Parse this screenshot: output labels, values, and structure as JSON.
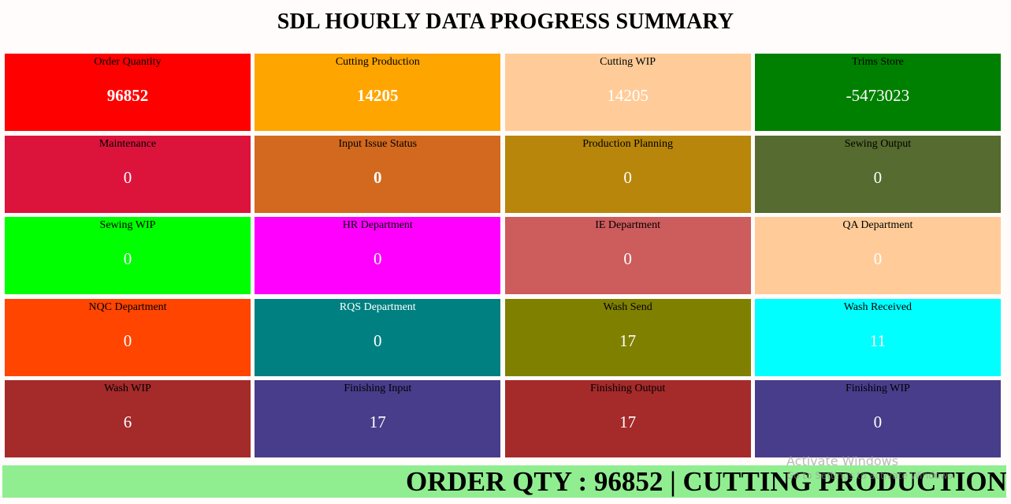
{
  "header": {
    "title": "SDL HOURLY DATA PROGRESS SUMMARY"
  },
  "cards": [
    {
      "label": "Order Quantity",
      "value": "96852",
      "bg": "#ff0000",
      "label_color": "#000000",
      "value_color": "#ffffff",
      "bold": true
    },
    {
      "label": "Cutting Production",
      "value": "14205",
      "bg": "#ffa500",
      "label_color": "#000000",
      "value_color": "#ffffff",
      "bold": true
    },
    {
      "label": "Cutting WIP",
      "value": "14205",
      "bg": "#ffcc99",
      "label_color": "#000000",
      "value_color": "#ffffff",
      "bold": false
    },
    {
      "label": "Trims Store",
      "value": "-5473023",
      "bg": "#008000",
      "label_color": "#000000",
      "value_color": "#ffffff",
      "bold": false
    },
    {
      "label": "Maintenance",
      "value": "0",
      "bg": "#dc143c",
      "label_color": "#000000",
      "value_color": "#ffffff",
      "bold": false
    },
    {
      "label": "Input Issue Status",
      "value": "0",
      "bg": "#d2691e",
      "label_color": "#000000",
      "value_color": "#ffffff",
      "bold": true
    },
    {
      "label": "Production Planning",
      "value": "0",
      "bg": "#b8860b",
      "label_color": "#000000",
      "value_color": "#ffffff",
      "bold": false
    },
    {
      "label": "Sewing Output",
      "value": "0",
      "bg": "#556b2f",
      "label_color": "#000000",
      "value_color": "#ffffff",
      "bold": false
    },
    {
      "label": "Sewing WIP",
      "value": "0",
      "bg": "#00ff00",
      "label_color": "#000000",
      "value_color": "#ffffff",
      "bold": false
    },
    {
      "label": "HR Department",
      "value": "0",
      "bg": "#ff00ff",
      "label_color": "#000000",
      "value_color": "#ffffff",
      "bold": false
    },
    {
      "label": "IE Department",
      "value": "0",
      "bg": "#cd5c5c",
      "label_color": "#000000",
      "value_color": "#ffffff",
      "bold": false
    },
    {
      "label": "QA Department",
      "value": "0",
      "bg": "#ffcc99",
      "label_color": "#000000",
      "value_color": "#ffffff",
      "bold": false
    },
    {
      "label": "NQC Department",
      "value": "0",
      "bg": "#ff4500",
      "label_color": "#000000",
      "value_color": "#ffffff",
      "bold": false
    },
    {
      "label": "RQS Department",
      "value": "0",
      "bg": "#008080",
      "label_color": "#ffffff",
      "value_color": "#ffffff",
      "bold": false
    },
    {
      "label": "Wash Send",
      "value": "17",
      "bg": "#808000",
      "label_color": "#000000",
      "value_color": "#ffffff",
      "bold": false
    },
    {
      "label": "Wash Received",
      "value": "11",
      "bg": "#00ffff",
      "label_color": "#000000",
      "value_color": "#ffffff",
      "bold": false
    },
    {
      "label": "Wash WIP",
      "value": "6",
      "bg": "#a52a2a",
      "label_color": "#000000",
      "value_color": "#ffffff",
      "bold": false
    },
    {
      "label": "Finishing Input",
      "value": "17",
      "bg": "#483d8b",
      "label_color": "#000000",
      "value_color": "#ffffff",
      "bold": false
    },
    {
      "label": "Finishing Output",
      "value": "17",
      "bg": "#a52a2a",
      "label_color": "#000000",
      "value_color": "#ffffff",
      "bold": false
    },
    {
      "label": "Finishing WIP",
      "value": "0",
      "bg": "#483d8b",
      "label_color": "#000000",
      "value_color": "#ffffff",
      "bold": false
    }
  ],
  "ticker": {
    "text": "ORDER QTY : 96852 | CUTTING PRODUCTION",
    "bg": "#90ee90"
  },
  "watermark": {
    "title": "Activate Windows",
    "subtitle": "Go to Settings to activate Windows."
  }
}
